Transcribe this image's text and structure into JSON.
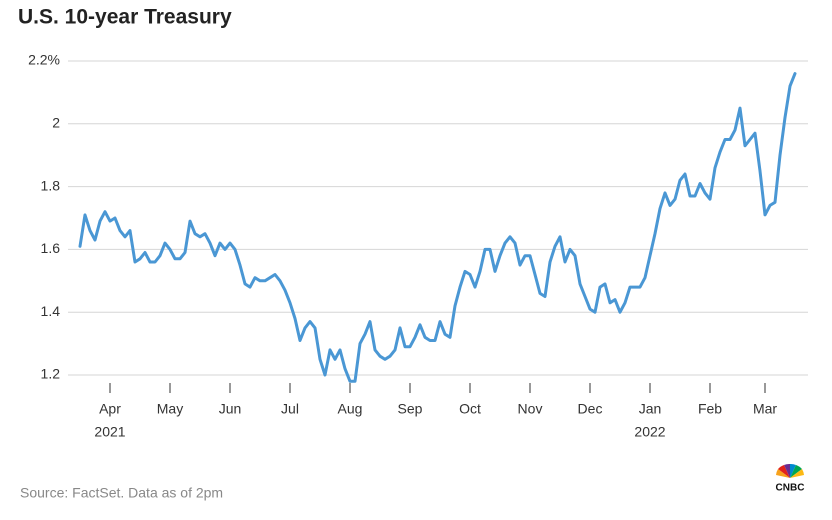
{
  "chart_data": {
    "type": "line",
    "title": "U.S. 10-year Treasury",
    "source": "Source: FactSet. Data as of 2pm",
    "logo": "CNBC",
    "color": "#4a97d4",
    "grid": true,
    "ylim": [
      1.15,
      2.2
    ],
    "yticks": [
      1.2,
      1.4,
      1.6,
      1.8,
      2,
      {
        "value": 2.2,
        "label": "2.2%"
      }
    ],
    "categories": [
      null,
      null,
      null,
      null,
      null,
      null,
      "Apr",
      null,
      null,
      null,
      null,
      null,
      null,
      null,
      null,
      null,
      null,
      null,
      "May",
      null,
      null,
      null,
      null,
      null,
      null,
      null,
      null,
      null,
      null,
      null,
      "Jun",
      null,
      null,
      null,
      null,
      null,
      null,
      null,
      null,
      null,
      null,
      null,
      "Jul",
      null,
      null,
      null,
      null,
      null,
      null,
      null,
      null,
      null,
      null,
      null,
      "Aug",
      null,
      null,
      null,
      null,
      null,
      null,
      null,
      null,
      null,
      null,
      null,
      "Sep",
      null,
      null,
      null,
      null,
      null,
      null,
      null,
      null,
      null,
      null,
      null,
      "Oct",
      null,
      null,
      null,
      null,
      null,
      null,
      null,
      null,
      null,
      null,
      null,
      "Nov",
      null,
      null,
      null,
      null,
      null,
      null,
      null,
      null,
      null,
      null,
      null,
      "Dec",
      null,
      null,
      null,
      null,
      null,
      null,
      null,
      null,
      null,
      null,
      null,
      "Jan",
      null,
      null,
      null,
      null,
      null,
      null,
      null,
      null,
      null,
      null,
      null,
      "Feb",
      null,
      null,
      null,
      null,
      null,
      null,
      null,
      null,
      null,
      null,
      "Mar",
      null,
      null,
      null,
      null,
      null,
      null
    ],
    "years": [
      null,
      null,
      null,
      null,
      null,
      null,
      "2021",
      null,
      null,
      null,
      null,
      null,
      null,
      null,
      null,
      null,
      null,
      null,
      null,
      null,
      null,
      null,
      null,
      null,
      null,
      null,
      null,
      null,
      null,
      null,
      null,
      null,
      null,
      null,
      null,
      null,
      null,
      null,
      null,
      null,
      null,
      null,
      null,
      null,
      null,
      null,
      null,
      null,
      null,
      null,
      null,
      null,
      null,
      null,
      null,
      null,
      null,
      null,
      null,
      null,
      null,
      null,
      null,
      null,
      null,
      null,
      null,
      null,
      null,
      null,
      null,
      null,
      null,
      null,
      null,
      null,
      null,
      null,
      null,
      null,
      null,
      null,
      null,
      null,
      null,
      null,
      null,
      null,
      null,
      null,
      null,
      null,
      null,
      null,
      null,
      null,
      null,
      null,
      null,
      null,
      null,
      null,
      null,
      null,
      null,
      null,
      null,
      null,
      null,
      null,
      null,
      null,
      null,
      null,
      "2022",
      null,
      null,
      null,
      null,
      null,
      null,
      null,
      null,
      null,
      null,
      null,
      null,
      null,
      null,
      null,
      null,
      null,
      null,
      null,
      null,
      null,
      null,
      null,
      null,
      null,
      null,
      null,
      null,
      null
    ],
    "values": [
      1.61,
      1.71,
      1.66,
      1.63,
      1.69,
      1.72,
      1.69,
      1.7,
      1.66,
      1.64,
      1.66,
      1.56,
      1.57,
      1.59,
      1.56,
      1.56,
      1.58,
      1.62,
      1.6,
      1.57,
      1.57,
      1.59,
      1.69,
      1.65,
      1.64,
      1.65,
      1.62,
      1.58,
      1.62,
      1.6,
      1.62,
      1.6,
      1.55,
      1.49,
      1.48,
      1.51,
      1.5,
      1.5,
      1.51,
      1.52,
      1.5,
      1.47,
      1.43,
      1.38,
      1.31,
      1.35,
      1.37,
      1.35,
      1.25,
      1.2,
      1.28,
      1.25,
      1.28,
      1.22,
      1.18,
      1.18,
      1.3,
      1.33,
      1.37,
      1.28,
      1.26,
      1.25,
      1.26,
      1.28,
      1.35,
      1.29,
      1.29,
      1.32,
      1.36,
      1.32,
      1.31,
      1.31,
      1.37,
      1.33,
      1.32,
      1.42,
      1.48,
      1.53,
      1.52,
      1.48,
      1.53,
      1.6,
      1.6,
      1.53,
      1.58,
      1.62,
      1.64,
      1.62,
      1.55,
      1.58,
      1.58,
      1.52,
      1.46,
      1.45,
      1.56,
      1.61,
      1.64,
      1.56,
      1.6,
      1.58,
      1.49,
      1.45,
      1.41,
      1.4,
      1.48,
      1.49,
      1.43,
      1.44,
      1.4,
      1.43,
      1.48,
      1.48,
      1.48,
      1.51,
      1.58,
      1.65,
      1.73,
      1.78,
      1.74,
      1.76,
      1.82,
      1.84,
      1.77,
      1.77,
      1.81,
      1.78,
      1.76,
      1.86,
      1.91,
      1.95,
      1.95,
      1.98,
      2.05,
      1.93,
      1.95,
      1.97,
      1.85,
      1.71,
      1.74,
      1.75,
      1.9,
      2.02,
      2.12,
      2.16
    ]
  }
}
